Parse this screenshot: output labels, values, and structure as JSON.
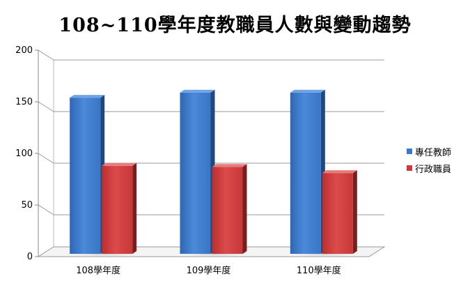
{
  "chart_data": {
    "type": "bar",
    "title": "108~110學年度教職員人數與變動趨勢",
    "categories": [
      "108學年度",
      "109學年度",
      "110學年度"
    ],
    "series": [
      {
        "name": "專任教師",
        "values": [
          156,
          161,
          161
        ],
        "color": "#3b78c8"
      },
      {
        "name": "行政職員",
        "values": [
          90,
          89,
          83
        ],
        "color": "#cc3b3b"
      }
    ],
    "ylim": [
      0,
      200
    ],
    "yticks": [
      0,
      50,
      100,
      150,
      200
    ],
    "grid": true,
    "legend_position": "right",
    "three_d": true
  }
}
